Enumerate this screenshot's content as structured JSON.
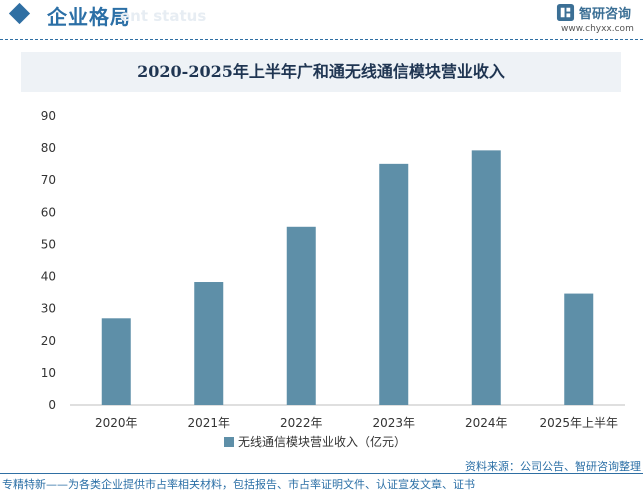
{
  "header": {
    "title": "企业格局",
    "subtitle": "ent status",
    "logo_name": "智研咨询",
    "logo_url": "www.chyxx.com"
  },
  "colors": {
    "bar": "#5e8fa8",
    "accent": "#2f6fa3",
    "title_band": "#eef2f6"
  },
  "chart_data": {
    "type": "bar",
    "title": "2020-2025年上半年广和通无线通信模块营业收入",
    "categories": [
      "2020年",
      "2021年",
      "2022年",
      "2023年",
      "2024年",
      "2025年上半年"
    ],
    "series": [
      {
        "name": "无线通信模块营业收入（亿元）",
        "values": [
          27.0,
          38.3,
          55.5,
          75.1,
          79.3,
          34.7
        ]
      }
    ],
    "ylim": [
      0,
      90
    ],
    "yticks": [
      0,
      10,
      20,
      30,
      40,
      50,
      60,
      70,
      80,
      90
    ],
    "grid": false,
    "legend": "bottom"
  },
  "footer": {
    "source": "资料来源：公司公告、智研咨询整理",
    "note": "专精特新——为各类企业提供市占率相关材料，包括报告、市占率证明文件、认证宣发文章、证书"
  }
}
